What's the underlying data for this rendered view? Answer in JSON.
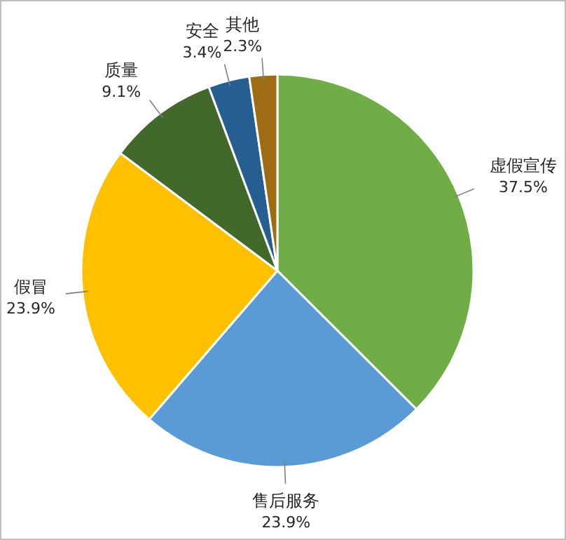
{
  "chart_data": {
    "type": "pie",
    "categories": [
      "虚假宣传",
      "售后服务",
      "假冒",
      "质量",
      "安全",
      "其他"
    ],
    "values": [
      37.5,
      23.9,
      23.9,
      9.1,
      3.4,
      2.3
    ],
    "colors": [
      "#70ad47",
      "#5b9bd5",
      "#ffc000",
      "#43682b",
      "#255e91",
      "#9e6c12"
    ],
    "value_labels": [
      "37.5%",
      "23.9%",
      "23.9%",
      "9.1%",
      "3.4%",
      "2.3%"
    ],
    "legend": false
  }
}
